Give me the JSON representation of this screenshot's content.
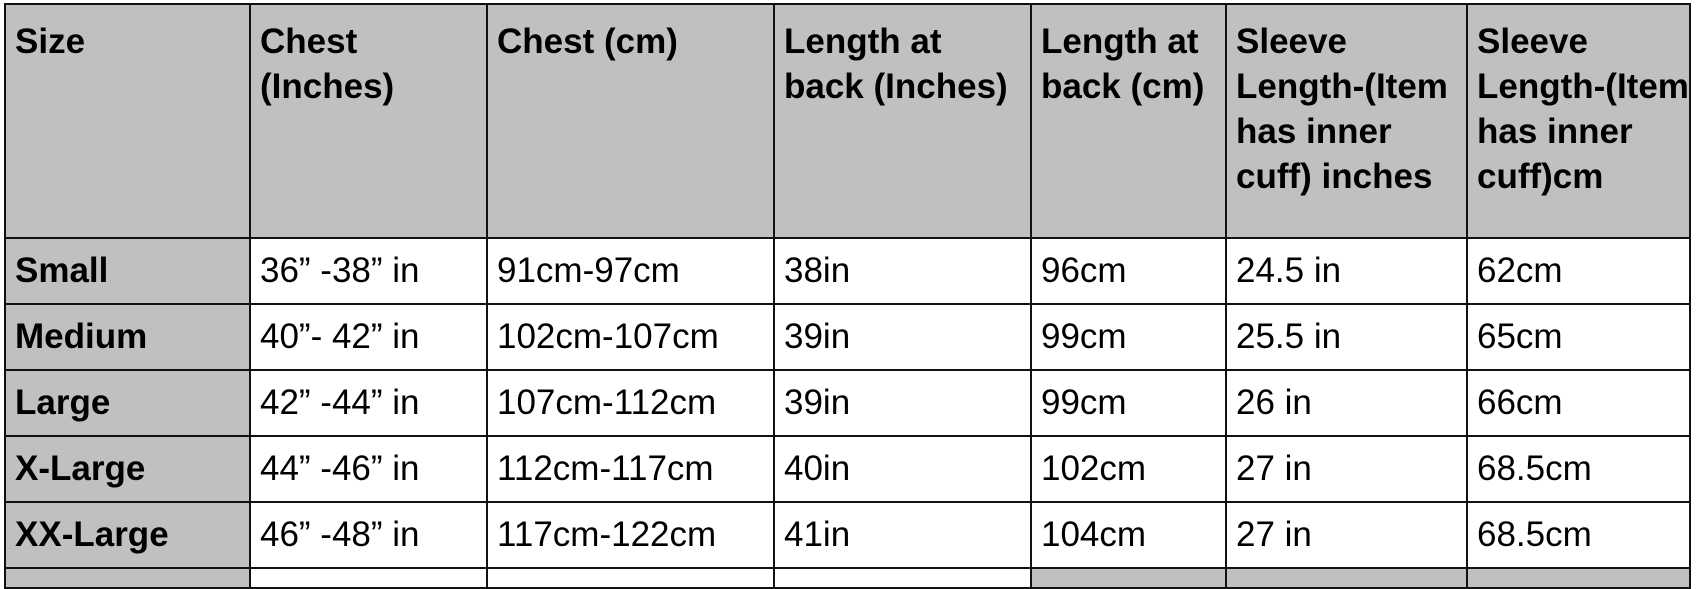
{
  "table": {
    "headers": [
      "Size",
      "Chest (Inches)",
      "Chest (cm)",
      "Length at back (Inches)",
      "Length at back (cm)",
      "Sleeve Length-(Item has inner cuff) inches",
      "Sleeve Length-(Item has inner cuff)cm"
    ],
    "rows": [
      [
        "Small",
        "36” -38” in",
        "91cm-97cm",
        "38in",
        "96cm",
        "24.5 in",
        "62cm"
      ],
      [
        "Medium",
        "40”- 42” in",
        "102cm-107cm",
        "39in",
        "99cm",
        "25.5 in",
        "65cm"
      ],
      [
        "Large",
        "42” -44” in",
        "107cm-112cm",
        "39in",
        "99cm",
        "26 in",
        "66cm"
      ],
      [
        "X-Large",
        "44” -46” in",
        "112cm-117cm",
        "40in",
        "102cm",
        "27 in",
        "68.5cm"
      ],
      [
        "XX-Large",
        "46” -48” in",
        "117cm-122cm",
        "41in",
        "104cm",
        "27 in",
        "68.5cm"
      ]
    ]
  },
  "colors": {
    "header_bg": "#c0c0c0",
    "border": "#111111"
  }
}
